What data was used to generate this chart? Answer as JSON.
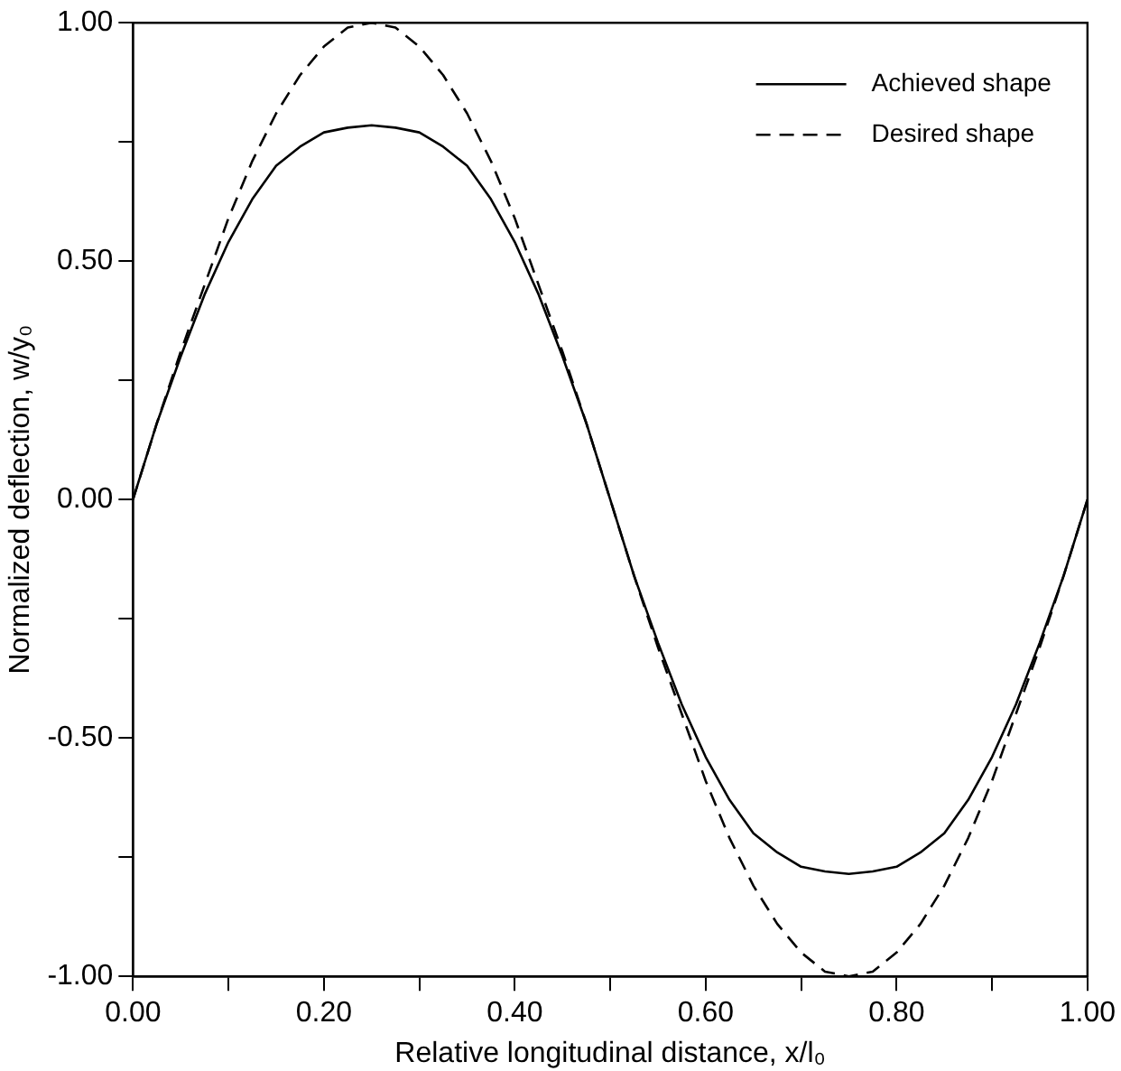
{
  "chart_data": {
    "type": "line",
    "xlabel": "Relative longitudinal distance, x/l₀",
    "ylabel": "Normalized deflection, w/y₀",
    "x": [
      0,
      0.025,
      0.05,
      0.075,
      0.1,
      0.125,
      0.15,
      0.175,
      0.2,
      0.225,
      0.25,
      0.275,
      0.3,
      0.325,
      0.35,
      0.375,
      0.4,
      0.425,
      0.45,
      0.475,
      0.5,
      0.525,
      0.55,
      0.575,
      0.6,
      0.625,
      0.65,
      0.675,
      0.7,
      0.725,
      0.75,
      0.775,
      0.8,
      0.825,
      0.85,
      0.875,
      0.9,
      0.925,
      0.95,
      0.975,
      1
    ],
    "series": [
      {
        "name": "Achieved shape",
        "color": "#000000",
        "line_style": "solid",
        "values": [
          0,
          0.16,
          0.3,
          0.43,
          0.54,
          0.63,
          0.7,
          0.74,
          0.77,
          0.78,
          0.785,
          0.78,
          0.77,
          0.74,
          0.7,
          0.63,
          0.54,
          0.43,
          0.3,
          0.16,
          0,
          -0.16,
          -0.3,
          -0.43,
          -0.54,
          -0.63,
          -0.7,
          -0.74,
          -0.77,
          -0.78,
          -0.785,
          -0.78,
          -0.77,
          -0.74,
          -0.7,
          -0.63,
          -0.54,
          -0.43,
          -0.3,
          -0.16,
          0
        ]
      },
      {
        "name": "Desired shape",
        "color": "#000000",
        "line_style": "dashed",
        "values": [
          0,
          0.16,
          0.31,
          0.45,
          0.59,
          0.71,
          0.81,
          0.89,
          0.95,
          0.99,
          1,
          0.99,
          0.95,
          0.89,
          0.81,
          0.71,
          0.59,
          0.45,
          0.31,
          0.16,
          0,
          -0.16,
          -0.31,
          -0.45,
          -0.59,
          -0.71,
          -0.81,
          -0.89,
          -0.95,
          -0.99,
          -1,
          -0.99,
          -0.95,
          -0.89,
          -0.81,
          -0.71,
          -0.59,
          -0.45,
          -0.31,
          -0.16,
          0
        ]
      }
    ],
    "xlim": [
      0,
      1
    ],
    "xticks": [
      {
        "value": 0,
        "label": "0.00"
      },
      {
        "value": 0.1,
        "label": null
      },
      {
        "value": 0.2,
        "label": "0.20"
      },
      {
        "value": 0.3,
        "label": null
      },
      {
        "value": 0.4,
        "label": "0.40"
      },
      {
        "value": 0.5,
        "label": null
      },
      {
        "value": 0.6,
        "label": "0.60"
      },
      {
        "value": 0.7,
        "label": null
      },
      {
        "value": 0.8,
        "label": "0.80"
      },
      {
        "value": 0.9,
        "label": null
      },
      {
        "value": 1,
        "label": "1.00"
      }
    ],
    "ylim": [
      -1,
      1
    ],
    "yticks": [
      {
        "value": -1,
        "label": "-1.00"
      },
      {
        "value": -0.75,
        "label": null
      },
      {
        "value": -0.5,
        "label": "-0.50"
      },
      {
        "value": -0.25,
        "label": null
      },
      {
        "value": 0,
        "label": "0.00"
      },
      {
        "value": 0.25,
        "label": null
      },
      {
        "value": 0.5,
        "label": "0.50"
      },
      {
        "value": 0.75,
        "label": null
      },
      {
        "value": 1,
        "label": "1.00"
      }
    ],
    "grid": false,
    "legend": "top right",
    "marker": "none"
  }
}
